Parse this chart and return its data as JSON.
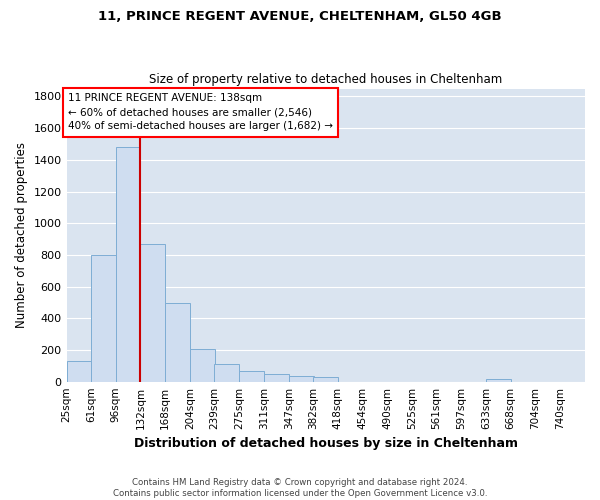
{
  "title1": "11, PRINCE REGENT AVENUE, CHELTENHAM, GL50 4GB",
  "title2": "Size of property relative to detached houses in Cheltenham",
  "xlabel": "Distribution of detached houses by size in Cheltenham",
  "ylabel": "Number of detached properties",
  "footnote": "Contains HM Land Registry data © Crown copyright and database right 2024.\nContains public sector information licensed under the Open Government Licence v3.0.",
  "bin_labels": [
    "25sqm",
    "61sqm",
    "96sqm",
    "132sqm",
    "168sqm",
    "204sqm",
    "239sqm",
    "275sqm",
    "311sqm",
    "347sqm",
    "382sqm",
    "418sqm",
    "454sqm",
    "490sqm",
    "525sqm",
    "561sqm",
    "597sqm",
    "633sqm",
    "668sqm",
    "704sqm",
    "740sqm"
  ],
  "bin_edges": [
    25,
    61,
    96,
    132,
    168,
    204,
    239,
    275,
    311,
    347,
    382,
    418,
    454,
    490,
    525,
    561,
    597,
    633,
    668,
    704,
    740
  ],
  "values": [
    130,
    800,
    1480,
    870,
    495,
    205,
    110,
    70,
    50,
    37,
    28,
    0,
    0,
    0,
    0,
    0,
    0,
    18,
    0,
    0,
    0
  ],
  "bar_color": "#cfddf0",
  "bar_edge_color": "#7eadd4",
  "grid_color": "#ffffff",
  "bg_color": "#dae4f0",
  "vline_x": 132,
  "vline_color": "#cc0000",
  "annotation_text": "11 PRINCE REGENT AVENUE: 138sqm\n← 60% of detached houses are smaller (2,546)\n40% of semi-detached houses are larger (1,682) →",
  "ylim": [
    0,
    1850
  ],
  "yticks": [
    0,
    200,
    400,
    600,
    800,
    1000,
    1200,
    1400,
    1600,
    1800
  ]
}
